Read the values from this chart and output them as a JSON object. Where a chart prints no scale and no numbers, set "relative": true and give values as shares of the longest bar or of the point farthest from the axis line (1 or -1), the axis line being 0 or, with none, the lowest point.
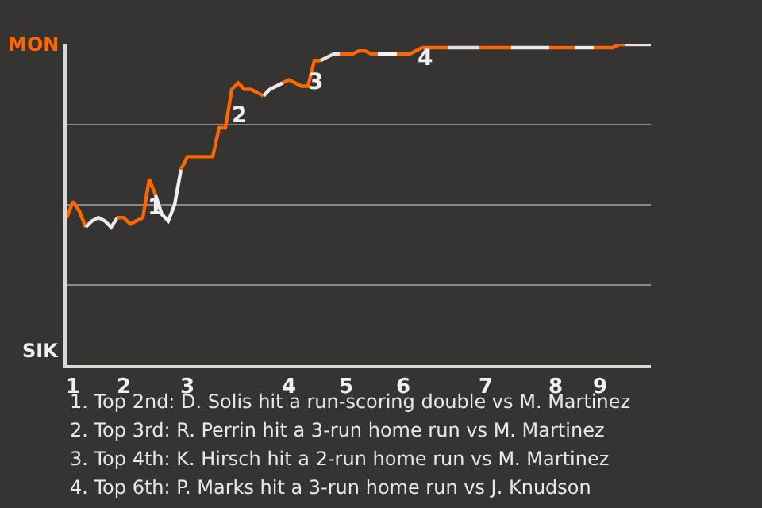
{
  "chart_data": {
    "type": "line",
    "relative": true,
    "categories": [
      null,
      "1",
      null,
      null,
      null,
      null,
      null,
      null,
      null,
      "2",
      null,
      null,
      null,
      null,
      null,
      null,
      null,
      null,
      null,
      "3",
      null,
      null,
      null,
      null,
      null,
      null,
      null,
      null,
      null,
      null,
      null,
      null,
      null,
      null,
      null,
      "4",
      null,
      null,
      null,
      null,
      null,
      null,
      null,
      null,
      "5",
      null,
      null,
      null,
      null,
      null,
      null,
      null,
      null,
      "6",
      null,
      null,
      null,
      null,
      null,
      null,
      null,
      null,
      null,
      null,
      null,
      null,
      "7",
      null,
      null,
      null,
      null,
      null,
      null,
      null,
      null,
      null,
      null,
      "8",
      null,
      null,
      null,
      null,
      null,
      null,
      "9",
      null,
      null,
      null,
      null,
      null,
      null,
      null,
      null
    ],
    "grid": "y",
    "marker": "none",
    "line_style": "solid",
    "series": [
      {
        "color": "#ff6600",
        "values": [
          0.46,
          0.51,
          0.48,
          0.43,
          null,
          null,
          null,
          null,
          null,
          null,
          null,
          null,
          null,
          null,
          null,
          null,
          null,
          null,
          null,
          null,
          null,
          null,
          null,
          null,
          null,
          null,
          null,
          null,
          null,
          null,
          null,
          null,
          null,
          null,
          null,
          null,
          null,
          null,
          null,
          null,
          null,
          null,
          null,
          null,
          null,
          null,
          null,
          null,
          null,
          null,
          null,
          null,
          null,
          null,
          null,
          null,
          null,
          null,
          null,
          null,
          null,
          null,
          null,
          null,
          null,
          null,
          null,
          null,
          null,
          null,
          null,
          null,
          null,
          null,
          null,
          null,
          null,
          null,
          null,
          null,
          null,
          null,
          null,
          null,
          null,
          null,
          null,
          null,
          null,
          null,
          null,
          null,
          null
        ]
      },
      {
        "color": "#e8e8e8",
        "values": [
          null,
          null,
          null,
          0.43,
          0.45,
          0.46,
          0.45,
          0.43,
          0.46,
          null,
          null,
          null,
          null,
          null,
          null,
          null,
          null,
          null,
          null,
          null,
          null,
          null,
          null,
          null,
          null,
          null,
          null,
          null,
          null,
          null,
          null,
          null,
          null,
          null,
          null,
          null,
          null,
          null,
          null,
          null,
          null,
          null,
          null,
          null,
          null,
          null,
          null,
          null,
          null,
          null,
          null,
          null,
          null,
          null,
          null,
          null,
          null,
          null,
          null,
          null,
          null,
          null,
          null,
          null,
          null,
          null,
          null,
          null,
          null,
          null,
          null,
          null,
          null,
          null,
          null,
          null,
          null,
          null,
          null,
          null,
          null,
          null,
          null,
          null,
          null,
          null,
          null,
          null,
          null,
          null,
          null,
          null,
          null
        ]
      },
      {
        "color": "#fe6601",
        "values": [
          null,
          null,
          null,
          null,
          null,
          null,
          null,
          null,
          0.46,
          0.46,
          0.44,
          0.45,
          0.46,
          0.58,
          0.53,
          null,
          null,
          null,
          null,
          null,
          null,
          null,
          null,
          null,
          null,
          null,
          null,
          null,
          null,
          null,
          null,
          null,
          null,
          null,
          null,
          null,
          null,
          null,
          null,
          null,
          null,
          null,
          null,
          null,
          null,
          null,
          null,
          null,
          null,
          null,
          null,
          null,
          null,
          null,
          null,
          null,
          null,
          null,
          null,
          null,
          null,
          null,
          null,
          null,
          null,
          null,
          null,
          null,
          null,
          null,
          null,
          null,
          null,
          null,
          null,
          null,
          null,
          null,
          null,
          null,
          null,
          null,
          null,
          null,
          null,
          null,
          null,
          null,
          null,
          null,
          null,
          null,
          null
        ]
      },
      {
        "color": "#f0f0f0",
        "values": [
          null,
          null,
          null,
          null,
          null,
          null,
          null,
          null,
          null,
          null,
          null,
          null,
          null,
          null,
          0.53,
          0.47,
          0.45,
          0.5,
          0.61,
          null,
          null,
          null,
          null,
          null,
          null,
          null,
          null,
          null,
          null,
          null,
          null,
          null,
          null,
          null,
          null,
          null,
          null,
          null,
          null,
          null,
          null,
          null,
          null,
          null,
          null,
          null,
          null,
          null,
          null,
          null,
          null,
          null,
          null,
          null,
          null,
          null,
          null,
          null,
          null,
          null,
          null,
          null,
          null,
          null,
          null,
          null,
          null,
          null,
          null,
          null,
          null,
          null,
          null,
          null,
          null,
          null,
          null,
          null,
          null,
          null,
          null,
          null,
          null,
          null,
          null,
          null,
          null,
          null,
          null,
          null,
          null,
          null,
          null
        ]
      },
      {
        "color": "#fd6602",
        "values": [
          null,
          null,
          null,
          null,
          null,
          null,
          null,
          null,
          null,
          null,
          null,
          null,
          null,
          null,
          null,
          null,
          null,
          null,
          0.61,
          0.65,
          0.65,
          0.65,
          0.65,
          0.65,
          0.74,
          0.74,
          0.86,
          0.88,
          0.86,
          0.86,
          0.85,
          0.84,
          null,
          null,
          null,
          null,
          null,
          null,
          null,
          null,
          null,
          null,
          null,
          null,
          null,
          null,
          null,
          null,
          null,
          null,
          null,
          null,
          null,
          null,
          null,
          null,
          null,
          null,
          null,
          null,
          null,
          null,
          null,
          null,
          null,
          null,
          null,
          null,
          null,
          null,
          null,
          null,
          null,
          null,
          null,
          null,
          null,
          null,
          null,
          null,
          null,
          null,
          null,
          null,
          null,
          null,
          null,
          null,
          null,
          null,
          null,
          null,
          null
        ]
      },
      {
        "color": "#ececec",
        "values": [
          null,
          null,
          null,
          null,
          null,
          null,
          null,
          null,
          null,
          null,
          null,
          null,
          null,
          null,
          null,
          null,
          null,
          null,
          null,
          null,
          null,
          null,
          null,
          null,
          null,
          null,
          null,
          null,
          null,
          null,
          null,
          0.84,
          0.86,
          0.87,
          0.88,
          null,
          null,
          null,
          null,
          null,
          null,
          null,
          null,
          null,
          null,
          null,
          null,
          null,
          null,
          null,
          null,
          null,
          null,
          null,
          null,
          null,
          null,
          null,
          null,
          null,
          null,
          null,
          null,
          null,
          null,
          null,
          null,
          null,
          null,
          null,
          null,
          null,
          null,
          null,
          null,
          null,
          null,
          null,
          null,
          null,
          null,
          null,
          null,
          null,
          null,
          null,
          null,
          null,
          null,
          null,
          null,
          null,
          null
        ]
      },
      {
        "color": "#ff6703",
        "values": [
          null,
          null,
          null,
          null,
          null,
          null,
          null,
          null,
          null,
          null,
          null,
          null,
          null,
          null,
          null,
          null,
          null,
          null,
          null,
          null,
          null,
          null,
          null,
          null,
          null,
          null,
          null,
          null,
          null,
          null,
          null,
          null,
          null,
          null,
          0.88,
          0.89,
          0.88,
          0.87,
          0.87,
          0.95,
          0.95,
          null,
          null,
          null,
          null,
          null,
          null,
          null,
          null,
          null,
          null,
          null,
          null,
          null,
          null,
          null,
          null,
          null,
          null,
          null,
          null,
          null,
          null,
          null,
          null,
          null,
          null,
          null,
          null,
          null,
          null,
          null,
          null,
          null,
          null,
          null,
          null,
          null,
          null,
          null,
          null,
          null,
          null,
          null,
          null,
          null,
          null,
          null,
          null,
          null,
          null,
          null,
          null
        ]
      },
      {
        "color": "#e4e4e4",
        "values": [
          null,
          null,
          null,
          null,
          null,
          null,
          null,
          null,
          null,
          null,
          null,
          null,
          null,
          null,
          null,
          null,
          null,
          null,
          null,
          null,
          null,
          null,
          null,
          null,
          null,
          null,
          null,
          null,
          null,
          null,
          null,
          null,
          null,
          null,
          null,
          null,
          null,
          null,
          null,
          null,
          0.95,
          0.96,
          0.97,
          0.97,
          null,
          null,
          null,
          null,
          null,
          null,
          null,
          null,
          null,
          null,
          null,
          null,
          null,
          null,
          null,
          null,
          null,
          null,
          null,
          null,
          null,
          null,
          null,
          null,
          null,
          null,
          null,
          null,
          null,
          null,
          null,
          null,
          null,
          null,
          null,
          null,
          null,
          null,
          null,
          null,
          null,
          null,
          null,
          null,
          null,
          null,
          null,
          null,
          null
        ]
      },
      {
        "color": "#fe6704",
        "values": [
          null,
          null,
          null,
          null,
          null,
          null,
          null,
          null,
          null,
          null,
          null,
          null,
          null,
          null,
          null,
          null,
          null,
          null,
          null,
          null,
          null,
          null,
          null,
          null,
          null,
          null,
          null,
          null,
          null,
          null,
          null,
          null,
          null,
          null,
          null,
          null,
          null,
          null,
          null,
          null,
          null,
          null,
          null,
          0.97,
          0.97,
          0.97,
          0.98,
          0.98,
          0.97,
          0.97,
          null,
          null,
          null,
          null,
          null,
          null,
          null,
          null,
          null,
          null,
          null,
          null,
          null,
          null,
          null,
          null,
          null,
          null,
          null,
          null,
          null,
          null,
          null,
          null,
          null,
          null,
          null,
          null,
          null,
          null,
          null,
          null,
          null,
          null,
          null,
          null,
          null,
          null,
          null,
          null,
          null,
          null,
          null
        ]
      },
      {
        "color": "#f4f4f4",
        "values": [
          null,
          null,
          null,
          null,
          null,
          null,
          null,
          null,
          null,
          null,
          null,
          null,
          null,
          null,
          null,
          null,
          null,
          null,
          null,
          null,
          null,
          null,
          null,
          null,
          null,
          null,
          null,
          null,
          null,
          null,
          null,
          null,
          null,
          null,
          null,
          null,
          null,
          null,
          null,
          null,
          null,
          null,
          null,
          null,
          null,
          null,
          null,
          null,
          null,
          0.97,
          0.97,
          0.97,
          0.97,
          null,
          null,
          null,
          null,
          null,
          null,
          null,
          null,
          null,
          null,
          null,
          null,
          null,
          null,
          null,
          null,
          null,
          null,
          null,
          null,
          null,
          null,
          null,
          null,
          null,
          null,
          null,
          null,
          null,
          null,
          null,
          null,
          null,
          null,
          null,
          null,
          null,
          null,
          null,
          null
        ]
      },
      {
        "color": "#fd6705",
        "values": [
          null,
          null,
          null,
          null,
          null,
          null,
          null,
          null,
          null,
          null,
          null,
          null,
          null,
          null,
          null,
          null,
          null,
          null,
          null,
          null,
          null,
          null,
          null,
          null,
          null,
          null,
          null,
          null,
          null,
          null,
          null,
          null,
          null,
          null,
          null,
          null,
          null,
          null,
          null,
          null,
          null,
          null,
          null,
          null,
          null,
          null,
          null,
          null,
          null,
          null,
          null,
          null,
          0.97,
          0.97,
          0.97,
          0.98,
          0.99,
          0.99,
          0.99,
          0.99,
          0.99,
          null,
          null,
          null,
          null,
          null,
          null,
          null,
          null,
          null,
          null,
          null,
          null,
          null,
          null,
          null,
          null,
          null,
          null,
          null,
          null,
          null,
          null,
          null,
          null,
          null,
          null,
          null,
          null,
          null,
          null,
          null,
          null
        ]
      },
      {
        "color": "#e0e0e0",
        "values": [
          null,
          null,
          null,
          null,
          null,
          null,
          null,
          null,
          null,
          null,
          null,
          null,
          null,
          null,
          null,
          null,
          null,
          null,
          null,
          null,
          null,
          null,
          null,
          null,
          null,
          null,
          null,
          null,
          null,
          null,
          null,
          null,
          null,
          null,
          null,
          null,
          null,
          null,
          null,
          null,
          null,
          null,
          null,
          null,
          null,
          null,
          null,
          null,
          null,
          null,
          null,
          null,
          null,
          null,
          null,
          null,
          null,
          null,
          null,
          null,
          0.99,
          0.99,
          0.99,
          0.99,
          0.99,
          0.99,
          null,
          null,
          null,
          null,
          null,
          null,
          null,
          null,
          null,
          null,
          null,
          null,
          null,
          null,
          null,
          null,
          null,
          null,
          null,
          null,
          null,
          null,
          null,
          null,
          null,
          null,
          null
        ]
      },
      {
        "color": "#ff6506",
        "values": [
          null,
          null,
          null,
          null,
          null,
          null,
          null,
          null,
          null,
          null,
          null,
          null,
          null,
          null,
          null,
          null,
          null,
          null,
          null,
          null,
          null,
          null,
          null,
          null,
          null,
          null,
          null,
          null,
          null,
          null,
          null,
          null,
          null,
          null,
          null,
          null,
          null,
          null,
          null,
          null,
          null,
          null,
          null,
          null,
          null,
          null,
          null,
          null,
          null,
          null,
          null,
          null,
          null,
          null,
          null,
          null,
          null,
          null,
          null,
          null,
          null,
          null,
          null,
          null,
          null,
          0.99,
          0.99,
          0.99,
          0.99,
          0.99,
          0.99,
          null,
          null,
          null,
          null,
          null,
          null,
          null,
          null,
          null,
          null,
          null,
          null,
          null,
          null,
          null,
          null,
          null,
          null,
          null,
          null,
          null,
          null
        ]
      },
      {
        "color": "#eaeaea",
        "values": [
          null,
          null,
          null,
          null,
          null,
          null,
          null,
          null,
          null,
          null,
          null,
          null,
          null,
          null,
          null,
          null,
          null,
          null,
          null,
          null,
          null,
          null,
          null,
          null,
          null,
          null,
          null,
          null,
          null,
          null,
          null,
          null,
          null,
          null,
          null,
          null,
          null,
          null,
          null,
          null,
          null,
          null,
          null,
          null,
          null,
          null,
          null,
          null,
          null,
          null,
          null,
          null,
          null,
          null,
          null,
          null,
          null,
          null,
          null,
          null,
          null,
          null,
          null,
          null,
          null,
          null,
          null,
          null,
          null,
          null,
          0.99,
          0.99,
          0.99,
          0.99,
          0.99,
          0.99,
          0.99,
          null,
          null,
          null,
          null,
          null,
          null,
          null,
          null,
          null,
          null,
          null,
          null,
          null,
          null,
          null,
          null
        ]
      },
      {
        "color": "#fe6507",
        "values": [
          null,
          null,
          null,
          null,
          null,
          null,
          null,
          null,
          null,
          null,
          null,
          null,
          null,
          null,
          null,
          null,
          null,
          null,
          null,
          null,
          null,
          null,
          null,
          null,
          null,
          null,
          null,
          null,
          null,
          null,
          null,
          null,
          null,
          null,
          null,
          null,
          null,
          null,
          null,
          null,
          null,
          null,
          null,
          null,
          null,
          null,
          null,
          null,
          null,
          null,
          null,
          null,
          null,
          null,
          null,
          null,
          null,
          null,
          null,
          null,
          null,
          null,
          null,
          null,
          null,
          null,
          null,
          null,
          null,
          null,
          null,
          null,
          null,
          null,
          null,
          null,
          0.99,
          0.99,
          0.99,
          0.99,
          0.99,
          null,
          null,
          null,
          null,
          null,
          null,
          null,
          null,
          null,
          null,
          null,
          null
        ]
      },
      {
        "color": "#eeeeee",
        "values": [
          null,
          null,
          null,
          null,
          null,
          null,
          null,
          null,
          null,
          null,
          null,
          null,
          null,
          null,
          null,
          null,
          null,
          null,
          null,
          null,
          null,
          null,
          null,
          null,
          null,
          null,
          null,
          null,
          null,
          null,
          null,
          null,
          null,
          null,
          null,
          null,
          null,
          null,
          null,
          null,
          null,
          null,
          null,
          null,
          null,
          null,
          null,
          null,
          null,
          null,
          null,
          null,
          null,
          null,
          null,
          null,
          null,
          null,
          null,
          null,
          null,
          null,
          null,
          null,
          null,
          null,
          null,
          null,
          null,
          null,
          null,
          null,
          null,
          null,
          null,
          null,
          null,
          null,
          null,
          null,
          0.99,
          0.99,
          0.99,
          0.99,
          null,
          null,
          null,
          null,
          null,
          null,
          null,
          null,
          null
        ]
      },
      {
        "color": "#fd6508",
        "values": [
          null,
          null,
          null,
          null,
          null,
          null,
          null,
          null,
          null,
          null,
          null,
          null,
          null,
          null,
          null,
          null,
          null,
          null,
          null,
          null,
          null,
          null,
          null,
          null,
          null,
          null,
          null,
          null,
          null,
          null,
          null,
          null,
          null,
          null,
          null,
          null,
          null,
          null,
          null,
          null,
          null,
          null,
          null,
          null,
          null,
          null,
          null,
          null,
          null,
          null,
          null,
          null,
          null,
          null,
          null,
          null,
          null,
          null,
          null,
          null,
          null,
          null,
          null,
          null,
          null,
          null,
          null,
          null,
          null,
          null,
          null,
          null,
          null,
          null,
          null,
          null,
          null,
          null,
          null,
          null,
          null,
          null,
          null,
          0.99,
          0.99,
          0.99,
          0.99,
          1.0,
          1.0,
          null,
          null,
          null,
          null
        ]
      },
      {
        "color": "#e6e6e6",
        "values": [
          null,
          null,
          null,
          null,
          null,
          null,
          null,
          null,
          null,
          null,
          null,
          null,
          null,
          null,
          null,
          null,
          null,
          null,
          null,
          null,
          null,
          null,
          null,
          null,
          null,
          null,
          null,
          null,
          null,
          null,
          null,
          null,
          null,
          null,
          null,
          null,
          null,
          null,
          null,
          null,
          null,
          null,
          null,
          null,
          null,
          null,
          null,
          null,
          null,
          null,
          null,
          null,
          null,
          null,
          null,
          null,
          null,
          null,
          null,
          null,
          null,
          null,
          null,
          null,
          null,
          null,
          null,
          null,
          null,
          null,
          null,
          null,
          null,
          null,
          null,
          null,
          null,
          null,
          null,
          null,
          null,
          null,
          null,
          null,
          null,
          null,
          null,
          null,
          1.0,
          1.0,
          1.0,
          1.0,
          1.0
        ]
      }
    ],
    "annotations": [
      "MON",
      "SIK",
      "1",
      "2",
      "3",
      "4",
      "1. Top 2nd: D. Solis hit a run-scoring double vs M. Martinez",
      "2. Top 3rd: R. Perrin hit a 3-run home run vs M. Martinez",
      "3. Top 4th: K. Hirsch hit a 2-run home run vs M. Martinez",
      "4. Top 6th: P. Marks hit a 3-run home run vs J. Knudson"
    ]
  }
}
